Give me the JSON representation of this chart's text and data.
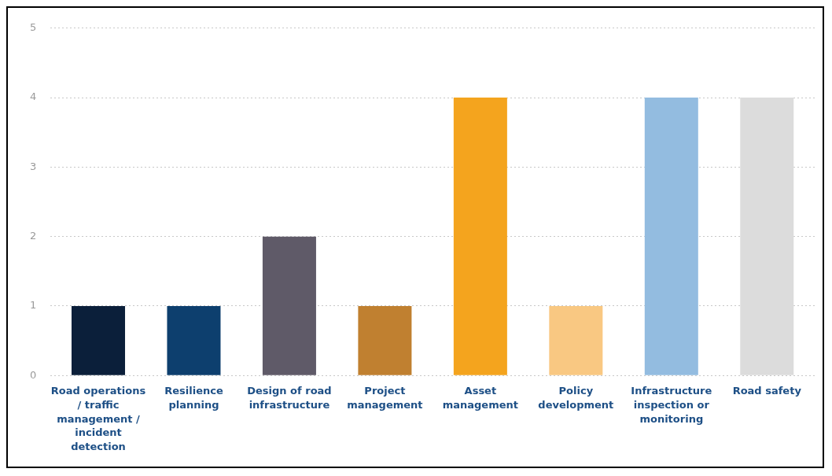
{
  "chart_data": {
    "type": "bar",
    "categories": [
      "Road operations / traffic management / incident detection",
      "Resilience planning",
      "Design of road infrastructure",
      "Project management",
      "Asset management",
      "Policy development",
      "Infrastructure inspection or monitoring",
      "Road safety"
    ],
    "values": [
      1,
      1,
      2,
      1,
      4,
      1,
      4,
      4
    ],
    "colors": [
      "#0b1f3a",
      "#0d3f6e",
      "#5f5a68",
      "#c08030",
      "#f4a41e",
      "#f9c882",
      "#93bce0",
      "#dcdcdc"
    ],
    "ylim": [
      0,
      5
    ],
    "yticks": [
      0,
      1,
      2,
      3,
      4,
      5
    ],
    "grid": "y",
    "legend": false
  }
}
